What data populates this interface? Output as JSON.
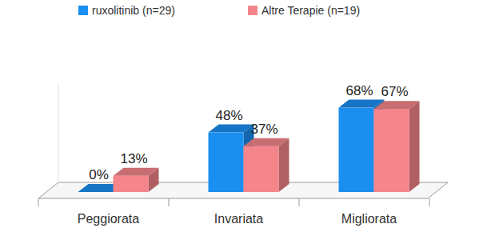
{
  "chart_data": {
    "type": "bar",
    "categories": [
      "Peggiorata",
      "Invariata",
      "Migliorata"
    ],
    "series": [
      {
        "name": "ruxolitinib (n=29)",
        "color": "#1b8ff0",
        "values": [
          0,
          48,
          68
        ],
        "value_labels": [
          "0%",
          "48%",
          "68%"
        ]
      },
      {
        "name": "Altre Terapie (n=19)",
        "color": "#f4858a",
        "values": [
          13,
          37,
          67
        ],
        "value_labels": [
          "13%",
          "37%",
          "67%"
        ]
      }
    ],
    "ylim": [
      0,
      80
    ],
    "data_labels": true,
    "tick_labels": "x",
    "legend": "top"
  }
}
